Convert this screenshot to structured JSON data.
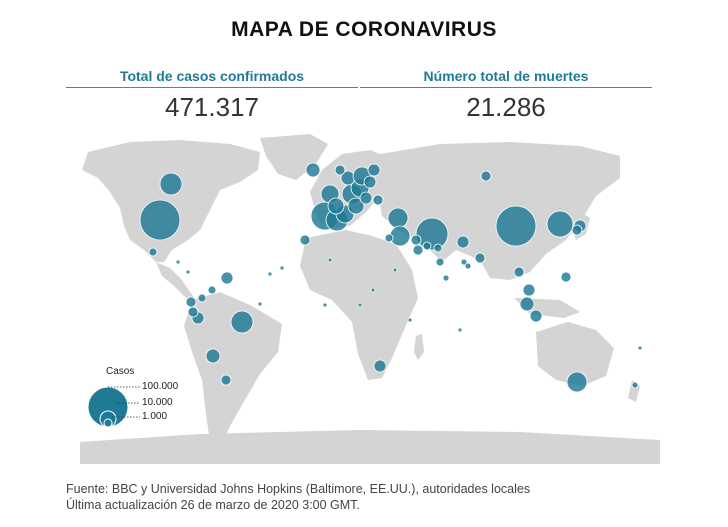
{
  "title": "MAPA DE CORONAVIRUS",
  "stats": {
    "cases_label": "Total de casos confirmados",
    "cases_value": "471.317",
    "deaths_label": "Número total de muertes",
    "deaths_value": "21.286"
  },
  "legend": {
    "title": "Casos",
    "sizes": [
      "100.000",
      "10.000",
      "1.000"
    ]
  },
  "colors": {
    "land": "#d4d4d4",
    "bubble": "#1f7a95",
    "accent": "#1f7a95"
  },
  "footer": {
    "source": "Fuente: BBC y Universidad Johns Hopkins (Baltimore, EE.UU.), autoridades locales",
    "updated": "Última actualización 26 de marzo de 2020 3:00 GMT."
  }
}
